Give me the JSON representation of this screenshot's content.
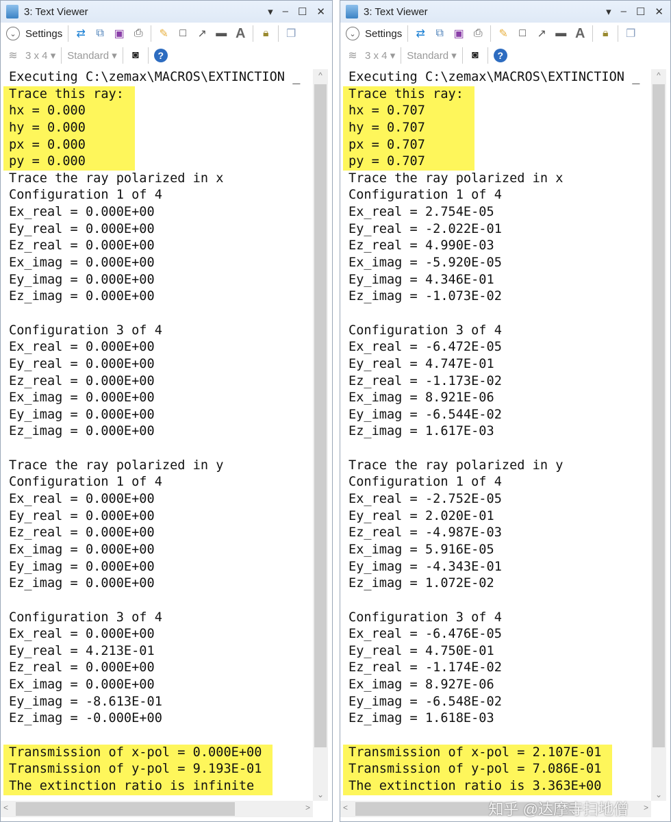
{
  "windows": [
    {
      "title": "3: Text Viewer",
      "settings": "Settings",
      "layout": "3 x 4",
      "style": "Standard",
      "lines": [
        {
          "t": "Executing C:\\zemax\\MACROS\\EXTINCTION _",
          "h": false
        },
        {
          "t": "Trace this ray:",
          "h": true
        },
        {
          "t": "hx = 0.000",
          "h": true
        },
        {
          "t": "hy = 0.000",
          "h": true
        },
        {
          "t": "px = 0.000",
          "h": true
        },
        {
          "t": "py = 0.000",
          "h": true
        },
        {
          "t": "Trace the ray polarized in x",
          "h": false
        },
        {
          "t": "Configuration 1 of 4",
          "h": false
        },
        {
          "t": "Ex_real = 0.000E+00",
          "h": false
        },
        {
          "t": "Ey_real = 0.000E+00",
          "h": false
        },
        {
          "t": "Ez_real = 0.000E+00",
          "h": false
        },
        {
          "t": "Ex_imag = 0.000E+00",
          "h": false
        },
        {
          "t": "Ey_imag = 0.000E+00",
          "h": false
        },
        {
          "t": "Ez_imag = 0.000E+00",
          "h": false
        },
        {
          "t": "",
          "h": false
        },
        {
          "t": "Configuration 3 of 4",
          "h": false
        },
        {
          "t": "Ex_real = 0.000E+00",
          "h": false
        },
        {
          "t": "Ey_real = 0.000E+00",
          "h": false
        },
        {
          "t": "Ez_real = 0.000E+00",
          "h": false
        },
        {
          "t": "Ex_imag = 0.000E+00",
          "h": false
        },
        {
          "t": "Ey_imag = 0.000E+00",
          "h": false
        },
        {
          "t": "Ez_imag = 0.000E+00",
          "h": false
        },
        {
          "t": "",
          "h": false
        },
        {
          "t": "Trace the ray polarized in y",
          "h": false
        },
        {
          "t": "Configuration 1 of 4",
          "h": false
        },
        {
          "t": "Ex_real = 0.000E+00",
          "h": false
        },
        {
          "t": "Ey_real = 0.000E+00",
          "h": false
        },
        {
          "t": "Ez_real = 0.000E+00",
          "h": false
        },
        {
          "t": "Ex_imag = 0.000E+00",
          "h": false
        },
        {
          "t": "Ey_imag = 0.000E+00",
          "h": false
        },
        {
          "t": "Ez_imag = 0.000E+00",
          "h": false
        },
        {
          "t": "",
          "h": false
        },
        {
          "t": "Configuration 3 of 4",
          "h": false
        },
        {
          "t": "Ex_real = 0.000E+00",
          "h": false
        },
        {
          "t": "Ey_real = 4.213E-01",
          "h": false
        },
        {
          "t": "Ez_real = 0.000E+00",
          "h": false
        },
        {
          "t": "Ex_imag = 0.000E+00",
          "h": false
        },
        {
          "t": "Ey_imag = -8.613E-01",
          "h": false
        },
        {
          "t": "Ez_imag = -0.000E+00",
          "h": false
        },
        {
          "t": "",
          "h": false
        },
        {
          "t": "Transmission of x-pol = 0.000E+00",
          "h": true
        },
        {
          "t": "Transmission of y-pol = 9.193E-01",
          "h": true
        },
        {
          "t": "The extinction ratio is infinite",
          "h": true
        }
      ]
    },
    {
      "title": "3: Text Viewer",
      "settings": "Settings",
      "layout": "3 x 4",
      "style": "Standard",
      "lines": [
        {
          "t": "Executing C:\\zemax\\MACROS\\EXTINCTION _",
          "h": false
        },
        {
          "t": "Trace this ray:",
          "h": true
        },
        {
          "t": "hx = 0.707",
          "h": true
        },
        {
          "t": "hy = 0.707",
          "h": true
        },
        {
          "t": "px = 0.707",
          "h": true
        },
        {
          "t": "py = 0.707",
          "h": true
        },
        {
          "t": "Trace the ray polarized in x",
          "h": false
        },
        {
          "t": "Configuration 1 of 4",
          "h": false
        },
        {
          "t": "Ex_real = 2.754E-05",
          "h": false
        },
        {
          "t": "Ey_real = -2.022E-01",
          "h": false
        },
        {
          "t": "Ez_real = 4.990E-03",
          "h": false
        },
        {
          "t": "Ex_imag = -5.920E-05",
          "h": false
        },
        {
          "t": "Ey_imag = 4.346E-01",
          "h": false
        },
        {
          "t": "Ez_imag = -1.073E-02",
          "h": false
        },
        {
          "t": "",
          "h": false
        },
        {
          "t": "Configuration 3 of 4",
          "h": false
        },
        {
          "t": "Ex_real = -6.472E-05",
          "h": false
        },
        {
          "t": "Ey_real = 4.747E-01",
          "h": false
        },
        {
          "t": "Ez_real = -1.173E-02",
          "h": false
        },
        {
          "t": "Ex_imag = 8.921E-06",
          "h": false
        },
        {
          "t": "Ey_imag = -6.544E-02",
          "h": false
        },
        {
          "t": "Ez_imag = 1.617E-03",
          "h": false
        },
        {
          "t": "",
          "h": false
        },
        {
          "t": "Trace the ray polarized in y",
          "h": false
        },
        {
          "t": "Configuration 1 of 4",
          "h": false
        },
        {
          "t": "Ex_real = -2.752E-05",
          "h": false
        },
        {
          "t": "Ey_real = 2.020E-01",
          "h": false
        },
        {
          "t": "Ez_real = -4.987E-03",
          "h": false
        },
        {
          "t": "Ex_imag = 5.916E-05",
          "h": false
        },
        {
          "t": "Ey_imag = -4.343E-01",
          "h": false
        },
        {
          "t": "Ez_imag = 1.072E-02",
          "h": false
        },
        {
          "t": "",
          "h": false
        },
        {
          "t": "Configuration 3 of 4",
          "h": false
        },
        {
          "t": "Ex_real = -6.476E-05",
          "h": false
        },
        {
          "t": "Ey_real = 4.750E-01",
          "h": false
        },
        {
          "t": "Ez_real = -1.174E-02",
          "h": false
        },
        {
          "t": "Ex_imag = 8.927E-06",
          "h": false
        },
        {
          "t": "Ey_imag = -6.548E-02",
          "h": false
        },
        {
          "t": "Ez_imag = 1.618E-03",
          "h": false
        },
        {
          "t": "",
          "h": false
        },
        {
          "t": "Transmission of x-pol = 2.107E-01",
          "h": true
        },
        {
          "t": "Transmission of y-pol = 7.086E-01",
          "h": true
        },
        {
          "t": "The extinction ratio is 3.363E+00",
          "h": true
        }
      ]
    }
  ],
  "watermark": "知乎 @达摩寺扫地僧",
  "colors": {
    "highlight": "#fef65b",
    "titlebar": "#e4edf8"
  }
}
